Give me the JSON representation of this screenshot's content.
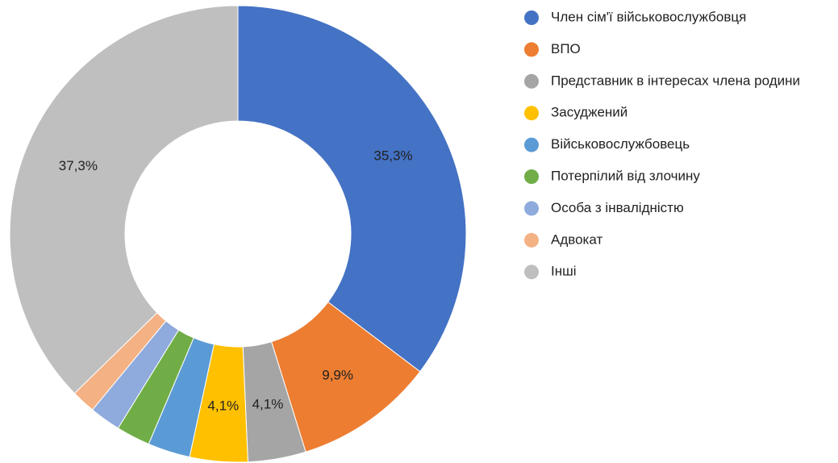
{
  "chart_data": {
    "type": "donut",
    "categories": [
      "Член сім'ї військовослужбовця",
      "ВПО",
      "Представник в інтересах члена родини",
      "Засуджений",
      "Військовослужбовець",
      "Потерпілий від злочину",
      "Особа з інвалідністю",
      "Адвокат",
      "Інші"
    ],
    "values": [
      35.3,
      9.9,
      4.1,
      4.1,
      3.0,
      2.4,
      2.2,
      1.7,
      37.3
    ],
    "value_labels": [
      "35,3%",
      "9,9%",
      "4,1%",
      "4,1%",
      null,
      null,
      null,
      null,
      "37,3%"
    ],
    "colors": [
      "#4472c4",
      "#ed7d31",
      "#a5a5a5",
      "#ffc000",
      "#5b9bd5",
      "#70ad47",
      "#8faadc",
      "#f4b183",
      "#bfbfbf"
    ],
    "legend": "right"
  }
}
